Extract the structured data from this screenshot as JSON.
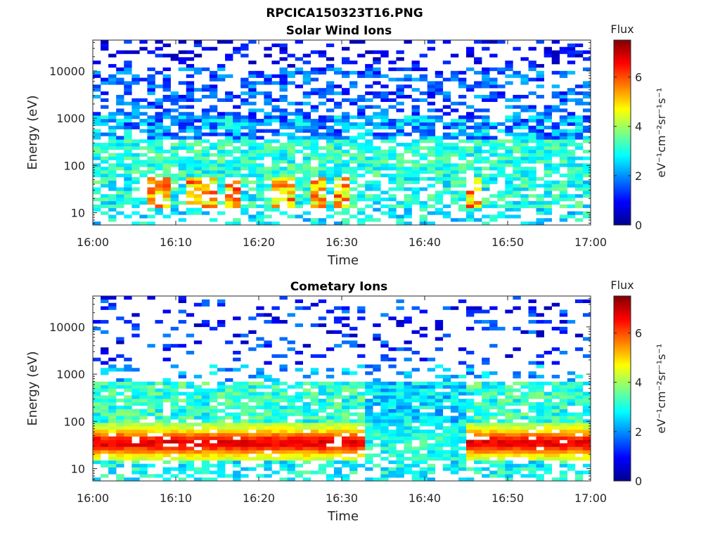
{
  "figure": {
    "title": "RPCICA150323T16.PNG"
  },
  "chart_data": [
    {
      "type": "heatmap",
      "title": "Solar Wind Ions",
      "xlabel": "Time",
      "ylabel": "Energy (eV)",
      "x_range": [
        "16:00",
        "17:00"
      ],
      "x_ticks": [
        "16:00",
        "16:10",
        "16:20",
        "16:30",
        "16:40",
        "16:50",
        "17:00"
      ],
      "y_scale": "log",
      "y_range_eV": [
        5.5,
        45000
      ],
      "y_ticks": [
        "10",
        "100",
        "1000",
        "10000"
      ],
      "colorbar": {
        "title": "Flux",
        "units": "eV⁻¹cm⁻²sr⁻¹s⁻¹",
        "range": [
          0,
          7.5
        ],
        "ticks": [
          "0",
          "2",
          "4",
          "6"
        ],
        "colormap": "jet"
      },
      "grid": false,
      "pattern": {
        "high_energy_flux_range": [
          1,
          2.5
        ],
        "mid_energy_flux_range": [
          2.5,
          3.5
        ],
        "low_energy_peak_flux": 6.2,
        "low_energy_peak_band_eV": [
          20,
          60
        ],
        "bursts_at": [
          "16:08",
          "16:12",
          "16:14",
          "16:17",
          "16:23",
          "16:27",
          "16:30",
          "16:46"
        ]
      }
    },
    {
      "type": "heatmap",
      "title": "Cometary Ions",
      "xlabel": "Time",
      "ylabel": "Energy (eV)",
      "x_range": [
        "16:00",
        "17:00"
      ],
      "x_ticks": [
        "16:00",
        "16:10",
        "16:20",
        "16:30",
        "16:40",
        "16:50",
        "17:00"
      ],
      "y_scale": "log",
      "y_range_eV": [
        5.5,
        45000
      ],
      "y_ticks": [
        "10",
        "100",
        "1000",
        "10000"
      ],
      "colorbar": {
        "title": "Flux",
        "units": "eV⁻¹cm⁻²sr⁻¹s⁻¹",
        "range": [
          0,
          7.5
        ],
        "ticks": [
          "0",
          "2",
          "4",
          "6"
        ],
        "colormap": "jet"
      },
      "grid": false,
      "pattern": {
        "upper_cutoff_eV": 700,
        "peak_flux": 6.5,
        "peak_band_eV": [
          15,
          50
        ],
        "quiet_interval": [
          "16:34",
          "16:44"
        ]
      }
    }
  ]
}
